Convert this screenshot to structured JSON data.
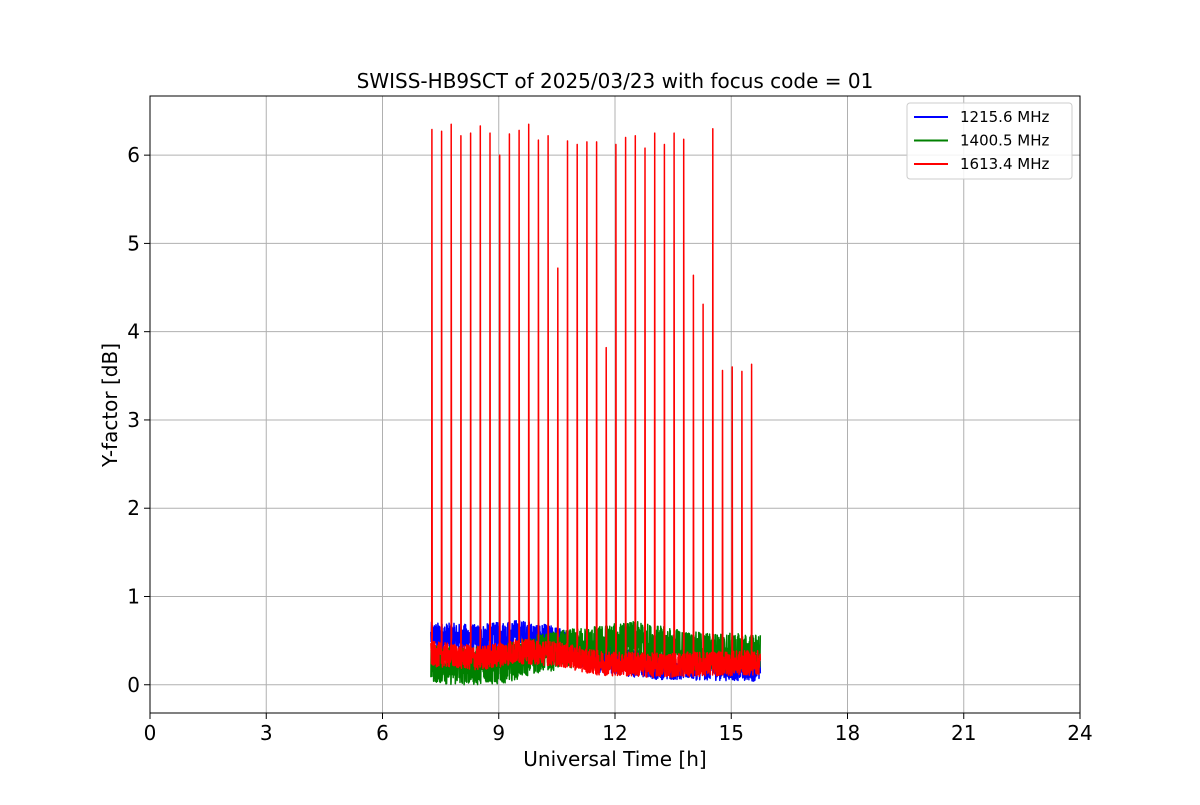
{
  "chart_data": {
    "type": "line",
    "title": "SWISS-HB9SCT of 2025/03/23 with focus code = 01",
    "xlabel": "Universal Time [h]",
    "ylabel": "Y-factor [dB]",
    "xlim": [
      0,
      24
    ],
    "ylim": [
      -0.32,
      6.67
    ],
    "xticks": [
      0,
      3,
      6,
      9,
      12,
      15,
      18,
      21,
      24
    ],
    "yticks": [
      0,
      1,
      2,
      3,
      4,
      5,
      6
    ],
    "xtick_labels": [
      "0",
      "3",
      "6",
      "9",
      "12",
      "15",
      "18",
      "21",
      "24"
    ],
    "ytick_labels": [
      "0",
      "1",
      "2",
      "3",
      "4",
      "5",
      "6"
    ],
    "grid": true,
    "legend_position": "top-right",
    "x_range_data": [
      7.25,
      15.75
    ],
    "series": [
      {
        "name": "1215.6 MHz",
        "color": "#0000ff",
        "baseline_profile": [
          [
            7.25,
            0.55
          ],
          [
            8.5,
            0.52
          ],
          [
            9.5,
            0.58
          ],
          [
            10.5,
            0.5
          ],
          [
            11.5,
            0.3
          ],
          [
            13.0,
            0.22
          ],
          [
            15.75,
            0.2
          ]
        ],
        "noise_amplitude": 0.16
      },
      {
        "name": "1400.5 MHz",
        "color": "#008000",
        "baseline_profile": [
          [
            7.25,
            0.25
          ],
          [
            8.0,
            0.2
          ],
          [
            9.0,
            0.22
          ],
          [
            10.0,
            0.35
          ],
          [
            11.0,
            0.42
          ],
          [
            12.5,
            0.5
          ],
          [
            14.0,
            0.38
          ],
          [
            15.75,
            0.35
          ]
        ],
        "noise_amplitude": 0.22
      },
      {
        "name": "1613.4 MHz",
        "color": "#ff0000",
        "baseline_profile": [
          [
            7.25,
            0.35
          ],
          [
            8.5,
            0.3
          ],
          [
            9.5,
            0.38
          ],
          [
            10.5,
            0.35
          ],
          [
            11.5,
            0.25
          ],
          [
            13.0,
            0.22
          ],
          [
            15.75,
            0.25
          ]
        ],
        "noise_amplitude": 0.14,
        "peaks": [
          [
            7.27,
            6.29
          ],
          [
            7.52,
            6.27
          ],
          [
            7.77,
            6.35
          ],
          [
            8.02,
            6.22
          ],
          [
            8.27,
            6.25
          ],
          [
            8.52,
            6.33
          ],
          [
            8.77,
            6.25
          ],
          [
            9.02,
            6.0
          ],
          [
            9.27,
            6.24
          ],
          [
            9.52,
            6.28
          ],
          [
            9.77,
            6.35
          ],
          [
            10.02,
            6.17
          ],
          [
            10.27,
            6.22
          ],
          [
            10.52,
            4.72
          ],
          [
            10.77,
            6.16
          ],
          [
            11.02,
            6.12
          ],
          [
            11.27,
            6.15
          ],
          [
            11.52,
            6.15
          ],
          [
            11.77,
            3.82
          ],
          [
            12.02,
            6.12
          ],
          [
            12.27,
            6.2
          ],
          [
            12.52,
            6.22
          ],
          [
            12.77,
            6.08
          ],
          [
            13.02,
            6.25
          ],
          [
            13.27,
            6.12
          ],
          [
            13.52,
            6.25
          ],
          [
            13.77,
            6.18
          ],
          [
            14.02,
            4.64
          ],
          [
            14.27,
            4.31
          ],
          [
            14.52,
            6.3
          ],
          [
            14.77,
            3.56
          ],
          [
            15.02,
            3.6
          ],
          [
            15.27,
            3.55
          ],
          [
            15.52,
            3.63
          ]
        ]
      }
    ]
  }
}
